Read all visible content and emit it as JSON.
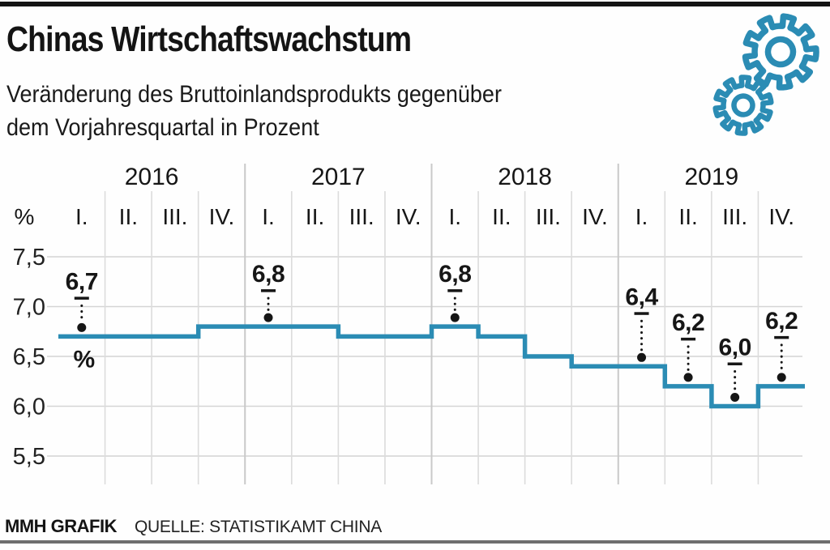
{
  "page": {
    "title": "Chinas Wirtschaftswachstum",
    "subtitle_line1": "Veränderung des Bruttoinlandsprodukts gegenüber",
    "subtitle_line2": "dem Vorjahresquartal in Prozent",
    "footer": {
      "brand": "MMH GRAFIK",
      "source": "QUELLE: STATISTIKAMT CHINA"
    },
    "decoration": {
      "gears_icon_color": "#2b8cb4",
      "top_rule_color": "#141414",
      "bottom_rule_color": "#6e6e6e"
    }
  },
  "chart_data": {
    "type": "line",
    "step": true,
    "title": "Chinas Wirtschaftswachstum",
    "unit_label": "%",
    "years": [
      "2016",
      "2017",
      "2018",
      "2019"
    ],
    "quarter_labels": [
      "I.",
      "II.",
      "III.",
      "IV."
    ],
    "categories": [
      "2016 I.",
      "2016 II.",
      "2016 III.",
      "2016 IV.",
      "2017 I.",
      "2017 II.",
      "2017 III.",
      "2017 IV.",
      "2018 I.",
      "2018 II.",
      "2018 III.",
      "2018 IV.",
      "2019 I.",
      "2019 II.",
      "2019 III.",
      "2019 IV."
    ],
    "values": [
      6.7,
      6.7,
      6.7,
      6.8,
      6.8,
      6.8,
      6.7,
      6.7,
      6.8,
      6.7,
      6.5,
      6.4,
      6.4,
      6.2,
      6.0,
      6.2
    ],
    "y_ticks": [
      {
        "label": "7,5",
        "value": 7.5
      },
      {
        "label": "7,0",
        "value": 7.0
      },
      {
        "label": "6,5",
        "value": 6.5
      },
      {
        "label": "6,0",
        "value": 6.0
      },
      {
        "label": "5,5",
        "value": 5.5
      }
    ],
    "ylim": [
      5.5,
      7.5
    ],
    "grid": true,
    "legend_position": "none",
    "line_color": "#2b8cb4",
    "annotation_color": "#161616",
    "annotations": [
      {
        "index": 0,
        "label": "6,7",
        "value": 6.7,
        "offset": 49
      },
      {
        "index": 4,
        "label": "6,8",
        "value": 6.8,
        "offset": 46
      },
      {
        "index": 8,
        "label": "6,8",
        "value": 6.8,
        "offset": 46
      },
      {
        "index": 12,
        "label": "6,4",
        "value": 6.4,
        "offset": 67
      },
      {
        "index": 13,
        "label": "6,2",
        "value": 6.2,
        "offset": 60
      },
      {
        "index": 14,
        "label": "6,0",
        "value": 6.0,
        "offset": 54
      },
      {
        "index": 15,
        "label": "6,2",
        "value": 6.2,
        "offset": 62
      }
    ],
    "unit_annotation": {
      "index": 0,
      "label": "%"
    }
  }
}
